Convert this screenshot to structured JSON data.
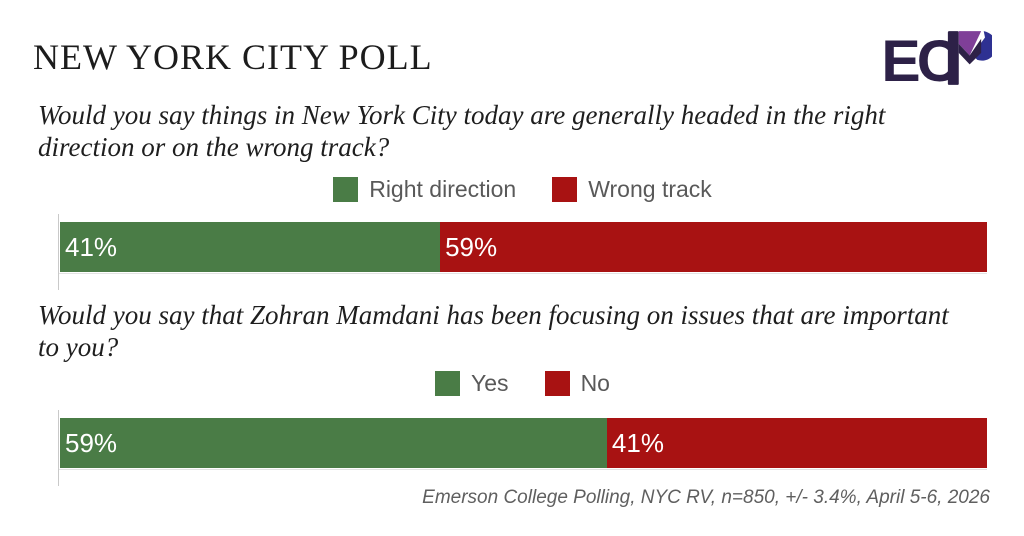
{
  "header": {
    "title": "NEW YORK CITY POLL"
  },
  "logo": {
    "name": "ECP logo",
    "letters": "EC",
    "dark": "#2d2147",
    "purple": "#7f3f98",
    "navy": "#2e3192"
  },
  "colors": {
    "green": "#4a7c46",
    "red": "#a81212",
    "legend_text": "#595959",
    "question_text": "#1e1e1e",
    "axis": "#c9c9c9"
  },
  "footer": {
    "source": "Emerson College Polling, NYC RV, n=850, +/- 3.4%, April 5-6, 2026"
  },
  "chart_data": [
    {
      "type": "bar",
      "variant": "horizontal-stacked-100",
      "question": "Would you say things in New York City today are generally headed in the right direction or on the wrong track?",
      "categories": [
        "Right direction",
        "Wrong track"
      ],
      "series": [
        {
          "name": "Right direction",
          "value": 41,
          "label": "41%",
          "color": "#4a7c46"
        },
        {
          "name": "Wrong track",
          "value": 59,
          "label": "59%",
          "color": "#a81212"
        }
      ],
      "xlim": [
        0,
        100
      ],
      "legend_position": "top-center",
      "value_labels": "inside-start",
      "grid": false
    },
    {
      "type": "bar",
      "variant": "horizontal-stacked-100",
      "question": "Would you say that Zohran Mamdani has been focusing on issues that are important to you?",
      "categories": [
        "Yes",
        "No"
      ],
      "series": [
        {
          "name": "Yes",
          "value": 59,
          "label": "59%",
          "color": "#4a7c46"
        },
        {
          "name": "No",
          "value": 41,
          "label": "41%",
          "color": "#a81212"
        }
      ],
      "xlim": [
        0,
        100
      ],
      "legend_position": "top-center",
      "value_labels": "inside-start",
      "grid": false
    }
  ]
}
